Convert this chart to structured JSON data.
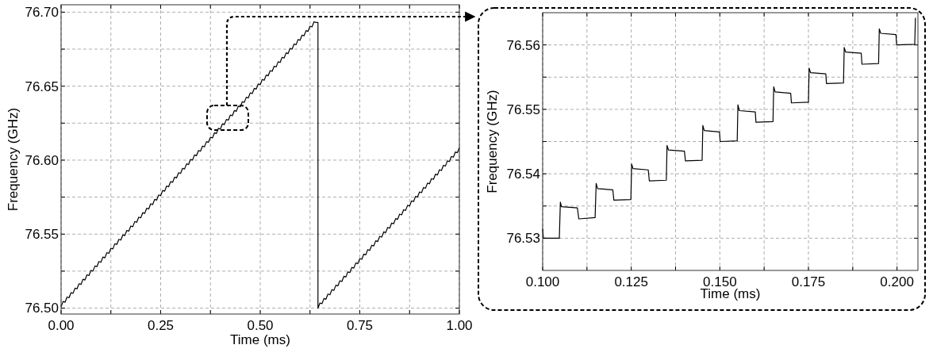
{
  "chart_data": [
    {
      "type": "line",
      "xlabel": "Time (ms)",
      "ylabel": "Frequency (GHz)",
      "xlim": [
        0,
        1
      ],
      "ylim": [
        76.496,
        76.705
      ],
      "grid": true,
      "xticks": [
        {
          "value": 0,
          "label": "0.00"
        },
        {
          "value": 0.125,
          "label": null
        },
        {
          "value": 0.25,
          "label": "0.25"
        },
        {
          "value": 0.375,
          "label": null
        },
        {
          "value": 0.5,
          "label": "0.50"
        },
        {
          "value": 0.625,
          "label": null
        },
        {
          "value": 0.75,
          "label": "0.75"
        },
        {
          "value": 0.875,
          "label": null
        },
        {
          "value": 1,
          "label": "1.00"
        }
      ],
      "yticks": [
        {
          "value": 76.5,
          "label": "76.50"
        },
        {
          "value": 76.525,
          "label": null
        },
        {
          "value": 76.55,
          "label": "76.55"
        },
        {
          "value": 76.575,
          "label": null
        },
        {
          "value": 76.6,
          "label": "76.60"
        },
        {
          "value": 76.625,
          "label": null
        },
        {
          "value": 76.65,
          "label": "76.65"
        },
        {
          "value": 76.675,
          "label": null
        },
        {
          "value": 76.7,
          "label": "76.70"
        }
      ],
      "series": [
        {
          "color": "#000000",
          "x": [
            0,
            0.005,
            0.01,
            0.015,
            0.02,
            0.025,
            0.03,
            0.035,
            0.04,
            0.045,
            0.05,
            0.055,
            0.06,
            0.065,
            0.07,
            0.075,
            0.08,
            0.085,
            0.09,
            0.095,
            0.1,
            0.105,
            0.11,
            0.115,
            0.12,
            0.125,
            0.13,
            0.135,
            0.14,
            0.145,
            0.15,
            0.155,
            0.16,
            0.165,
            0.17,
            0.175,
            0.18,
            0.185,
            0.19,
            0.195,
            0.2,
            0.205,
            0.21,
            0.215,
            0.22,
            0.225,
            0.23,
            0.235,
            0.24,
            0.245,
            0.25,
            0.255,
            0.26,
            0.265,
            0.27,
            0.275,
            0.28,
            0.285,
            0.29,
            0.295,
            0.3,
            0.305,
            0.31,
            0.315,
            0.32,
            0.325,
            0.33,
            0.335,
            0.34,
            0.345,
            0.35,
            0.355,
            0.36,
            0.365,
            0.37,
            0.375,
            0.38,
            0.385,
            0.39,
            0.395,
            0.4,
            0.405,
            0.41,
            0.415,
            0.42,
            0.425,
            0.43,
            0.435,
            0.44,
            0.445,
            0.45,
            0.455,
            0.46,
            0.465,
            0.47,
            0.475,
            0.48,
            0.485,
            0.49,
            0.495,
            0.5,
            0.505,
            0.51,
            0.515,
            0.52,
            0.525,
            0.53,
            0.535,
            0.54,
            0.545,
            0.55,
            0.555,
            0.56,
            0.565,
            0.57,
            0.575,
            0.58,
            0.585,
            0.59,
            0.595,
            0.6,
            0.605,
            0.61,
            0.615,
            0.62,
            0.625,
            0.63,
            0.635,
            0.64,
            0.645,
            0.645,
            0.65,
            0.655,
            0.66,
            0.665,
            0.67,
            0.675,
            0.68,
            0.685,
            0.69,
            0.695,
            0.7,
            0.705,
            0.71,
            0.715,
            0.72,
            0.725,
            0.73,
            0.735,
            0.74,
            0.745,
            0.75,
            0.755,
            0.76,
            0.765,
            0.77,
            0.775,
            0.78,
            0.785,
            0.79,
            0.795,
            0.8,
            0.805,
            0.81,
            0.815,
            0.82,
            0.825,
            0.83,
            0.835,
            0.84,
            0.845,
            0.85,
            0.855,
            0.86,
            0.865,
            0.87,
            0.875,
            0.88,
            0.885,
            0.89,
            0.895,
            0.9,
            0.905,
            0.91,
            0.915,
            0.92,
            0.925,
            0.93,
            0.935,
            0.94,
            0.945,
            0.95,
            0.955,
            0.96,
            0.965,
            0.97,
            0.975,
            0.98,
            0.985,
            0.99,
            0.995,
            1
          ],
          "values": [
            76.501,
            76.5045,
            76.504,
            76.5075,
            76.507,
            76.5105,
            76.51,
            76.5135,
            76.513,
            76.5165,
            76.516,
            76.5195,
            76.519,
            76.5225,
            76.522,
            76.5255,
            76.525,
            76.5285,
            76.528,
            76.5315,
            76.531,
            76.5345,
            76.534,
            76.5375,
            76.537,
            76.5405,
            76.54,
            76.5435,
            76.543,
            76.5465,
            76.546,
            76.5495,
            76.549,
            76.5525,
            76.552,
            76.5555,
            76.555,
            76.5585,
            76.558,
            76.5615,
            76.561,
            76.5645,
            76.564,
            76.5675,
            76.567,
            76.5705,
            76.57,
            76.5735,
            76.573,
            76.5765,
            76.576,
            76.5795,
            76.579,
            76.5825,
            76.582,
            76.5855,
            76.585,
            76.5885,
            76.588,
            76.5915,
            76.591,
            76.5945,
            76.594,
            76.5975,
            76.597,
            76.6005,
            76.6,
            76.6035,
            76.603,
            76.6065,
            76.606,
            76.6095,
            76.609,
            76.6125,
            76.612,
            76.6155,
            76.615,
            76.6185,
            76.618,
            76.6215,
            76.621,
            76.6245,
            76.624,
            76.6275,
            76.627,
            76.6305,
            76.63,
            76.6335,
            76.633,
            76.6365,
            76.636,
            76.6395,
            76.639,
            76.6425,
            76.642,
            76.6455,
            76.645,
            76.6485,
            76.648,
            76.6515,
            76.651,
            76.6545,
            76.654,
            76.6575,
            76.657,
            76.6605,
            76.66,
            76.6635,
            76.663,
            76.6665,
            76.666,
            76.6695,
            76.669,
            76.6725,
            76.672,
            76.6755,
            76.675,
            76.6785,
            76.678,
            76.6815,
            76.681,
            76.6845,
            76.684,
            76.6875,
            76.687,
            76.6905,
            76.69,
            76.6935,
            76.693,
            76.693,
            76.5,
            76.5035,
            76.503,
            76.5065,
            76.506,
            76.5095,
            76.509,
            76.5125,
            76.512,
            76.5155,
            76.515,
            76.5185,
            76.518,
            76.5215,
            76.521,
            76.5245,
            76.524,
            76.5275,
            76.527,
            76.5305,
            76.53,
            76.5335,
            76.533,
            76.5365,
            76.536,
            76.5395,
            76.539,
            76.5425,
            76.542,
            76.5455,
            76.545,
            76.5485,
            76.548,
            76.5515,
            76.551,
            76.5545,
            76.554,
            76.5575,
            76.557,
            76.5605,
            76.56,
            76.5635,
            76.563,
            76.5665,
            76.566,
            76.5695,
            76.569,
            76.5725,
            76.572,
            76.5755,
            76.575,
            76.5785,
            76.578,
            76.5815,
            76.581,
            76.5845,
            76.584,
            76.5875,
            76.587,
            76.5905,
            76.59,
            76.5935,
            76.593,
            76.5965,
            76.596,
            76.5995,
            76.599,
            76.6025,
            76.602,
            76.6055,
            76.605,
            76.6085
          ]
        }
      ]
    },
    {
      "type": "line",
      "xlabel": "Time (ms)",
      "ylabel": "Frequency (GHz)",
      "xlim": [
        0.1,
        0.2059
      ],
      "ylim": [
        76.525,
        76.565
      ],
      "grid": true,
      "xticks": [
        {
          "value": 0.1,
          "label": "0.100"
        },
        {
          "value": 0.1125,
          "label": null
        },
        {
          "value": 0.125,
          "label": "0.125"
        },
        {
          "value": 0.1375,
          "label": null
        },
        {
          "value": 0.15,
          "label": "0.150"
        },
        {
          "value": 0.1625,
          "label": null
        },
        {
          "value": 0.175,
          "label": "0.175"
        },
        {
          "value": 0.1875,
          "label": null
        },
        {
          "value": 0.2,
          "label": "0.200"
        }
      ],
      "yticks": [
        {
          "value": 76.53,
          "label": "76.53"
        },
        {
          "value": 76.535,
          "label": null
        },
        {
          "value": 76.54,
          "label": "76.54"
        },
        {
          "value": 76.545,
          "label": null
        },
        {
          "value": 76.55,
          "label": "76.55"
        },
        {
          "value": 76.555,
          "label": null
        },
        {
          "value": 76.56,
          "label": "76.56"
        }
      ],
      "series": [
        {
          "color": "#000000",
          "x": [
            0.1,
            0.1002,
            0.1047,
            0.105,
            0.1053,
            0.1098,
            0.1102,
            0.1148,
            0.1151,
            0.1155,
            0.1198,
            0.1201,
            0.1249,
            0.1251,
            0.1255,
            0.1298,
            0.1301,
            0.1349,
            0.1351,
            0.1355,
            0.14,
            0.1403,
            0.145,
            0.1452,
            0.1456,
            0.1499,
            0.1501,
            0.1549,
            0.1551,
            0.1555,
            0.16,
            0.1602,
            0.165,
            0.1652,
            0.1656,
            0.17,
            0.1702,
            0.175,
            0.1752,
            0.1756,
            0.1799,
            0.1801,
            0.1849,
            0.1851,
            0.1855,
            0.1899,
            0.1901,
            0.1948,
            0.195,
            0.1954,
            0.1997,
            0.1999,
            0.205,
            0.2052
          ],
          "values": [
            76.5315,
            76.53,
            76.53,
            76.5356,
            76.5349,
            76.5347,
            76.533,
            76.5332,
            76.5385,
            76.5377,
            76.5375,
            76.5359,
            76.536,
            76.5415,
            76.5408,
            76.5406,
            76.5389,
            76.539,
            76.5444,
            76.5437,
            76.5435,
            76.542,
            76.5421,
            76.5475,
            76.5467,
            76.5465,
            76.545,
            76.5451,
            76.5507,
            76.5498,
            76.5496,
            76.548,
            76.5481,
            76.5535,
            76.5527,
            76.5525,
            76.551,
            76.5511,
            76.5564,
            76.5557,
            76.5555,
            76.554,
            76.5541,
            76.5596,
            76.5589,
            76.5587,
            76.557,
            76.5571,
            76.5625,
            76.5618,
            76.5616,
            76.56,
            76.5601,
            76.5642
          ]
        }
      ]
    }
  ]
}
